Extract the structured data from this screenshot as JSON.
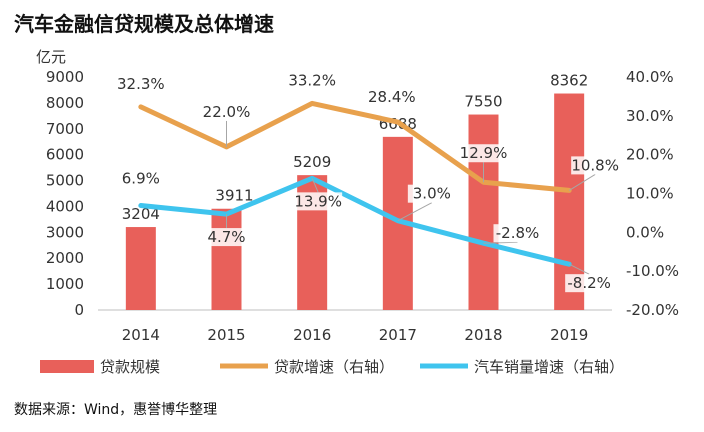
{
  "title": "汽车金融信贷规模及总体增速",
  "source": "数据来源：Wind，惠誉博华整理",
  "chart_data": {
    "type": "bar",
    "title": "汽车金融信贷规模及总体增速",
    "ylabel": "亿元",
    "categories": [
      "2014",
      "2015",
      "2016",
      "2017",
      "2018",
      "2019"
    ],
    "ylim": [
      0,
      9000
    ],
    "y_ticks": [
      "0",
      "1000",
      "2000",
      "3000",
      "4000",
      "5000",
      "6000",
      "7000",
      "8000",
      "9000"
    ],
    "y2lim": [
      -20,
      40
    ],
    "y2_ticks": [
      "-20.0%",
      "-10.0%",
      "0.0%",
      "10.0%",
      "20.0%",
      "30.0%",
      "40.0%"
    ],
    "grid": false,
    "legend_position": "bottom",
    "series": [
      {
        "name": "贷款规模",
        "type": "bar",
        "axis": "left",
        "color": "#e8605a",
        "values": [
          3204,
          3911,
          5209,
          6688,
          7550,
          8362
        ],
        "labels": [
          "3204",
          "3911",
          "5209",
          "6688",
          "7550",
          "8362"
        ]
      },
      {
        "name": "贷款增速（右轴）",
        "type": "line",
        "axis": "right",
        "color": "#e8a14d",
        "values": [
          32.3,
          22.0,
          33.2,
          28.4,
          12.9,
          10.8
        ],
        "labels": [
          "32.3%",
          "22.0%",
          "33.2%",
          "28.4%",
          "12.9%",
          "10.8%"
        ]
      },
      {
        "name": "汽车销量增速（右轴）",
        "type": "line",
        "axis": "right",
        "color": "#3fc4ee",
        "values": [
          6.9,
          4.7,
          13.9,
          3.0,
          -2.8,
          -8.2
        ],
        "labels": [
          "6.9%",
          "4.7%",
          "13.9%",
          "3.0%",
          "-2.8%",
          "-8.2%"
        ]
      }
    ]
  }
}
